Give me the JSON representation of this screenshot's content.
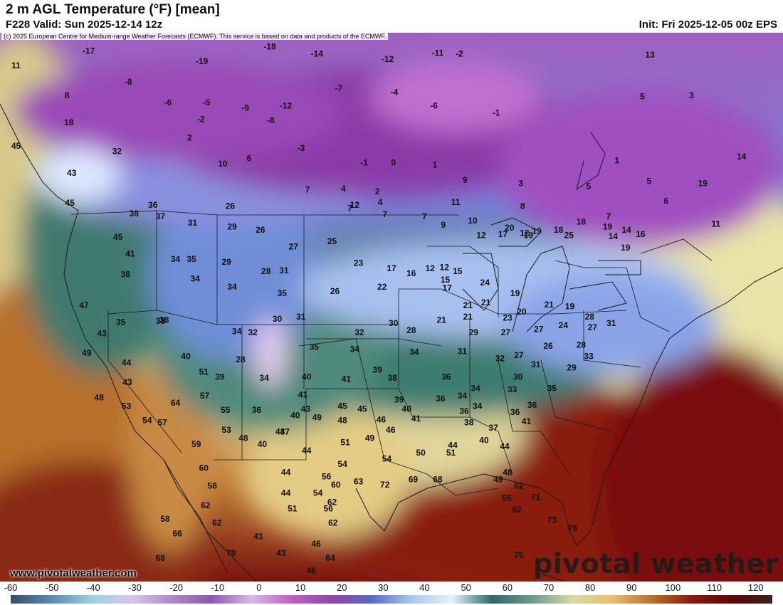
{
  "header": {
    "title": "2 m AGL Temperature (°F) [mean]",
    "valid": "F228 Valid: Sun 2025-12-14 12z",
    "init": "Init: Fri 2025-12-05 00z EPS",
    "copyright": "(c) 2025 European Centre for Medium-range Weather Forecasts (ECMWF). This service is based on data and products of the ECMWF."
  },
  "branding": {
    "site_url": "www.pivotalweather.com",
    "logo_text": "pivotal weather"
  },
  "colorbar": {
    "ticks": [
      "-60",
      "-50",
      "-40",
      "-30",
      "-20",
      "-10",
      "0",
      "10",
      "20",
      "30",
      "40",
      "50",
      "60",
      "70",
      "80",
      "90",
      "100",
      "110",
      "120"
    ],
    "range": [
      -60,
      124
    ],
    "colors": [
      "#3a4a6a",
      "#5a8ab0",
      "#9ad0e0",
      "#d8c8e8",
      "#b08ac8",
      "#8a5ab0",
      "#d8b8e8",
      "#c060c0",
      "#9048a8",
      "#5868c8",
      "#a8c8f0",
      "#e8f0ff",
      "#2e6a6a",
      "#6a9a8a",
      "#d8d8a8",
      "#e8c070",
      "#b8702a",
      "#8a1a10",
      "#5a0808",
      "#3a2020"
    ]
  },
  "temperature_labels": [
    {
      "v": "-17",
      "lon": -125.6,
      "lat": 53.2
    },
    {
      "v": "-19",
      "lon": -113.6,
      "lat": 52.2
    },
    {
      "v": "-18",
      "lon": -106.4,
      "lat": 53.6
    },
    {
      "v": "-14",
      "lon": -101.4,
      "lat": 52.9
    },
    {
      "v": "-12",
      "lon": -93.9,
      "lat": 52.4
    },
    {
      "v": "-11",
      "lon": -88.6,
      "lat": 53.0
    },
    {
      "v": "11",
      "lon": -133.3,
      "lat": 51.8
    },
    {
      "v": "-8",
      "lon": -121.4,
      "lat": 50.2
    },
    {
      "v": "8",
      "lon": -127.9,
      "lat": 48.9
    },
    {
      "v": "-6",
      "lon": -117.2,
      "lat": 48.2
    },
    {
      "v": "-5",
      "lon": -113.1,
      "lat": 48.2
    },
    {
      "v": "-9",
      "lon": -109.0,
      "lat": 47.7
    },
    {
      "v": "-12",
      "lon": -104.7,
      "lat": 47.9
    },
    {
      "v": "-7",
      "lon": -99.1,
      "lat": 49.6
    },
    {
      "v": "-4",
      "lon": -93.2,
      "lat": 49.2
    },
    {
      "v": "-6",
      "lon": -89.0,
      "lat": 47.9
    },
    {
      "v": "-2",
      "lon": -86.3,
      "lat": 52.9
    },
    {
      "v": "-1",
      "lon": -82.4,
      "lat": 47.2
    },
    {
      "v": "18",
      "lon": -127.7,
      "lat": 46.3
    },
    {
      "v": "-2",
      "lon": -113.7,
      "lat": 46.6
    },
    {
      "v": "-8",
      "lon": -106.3,
      "lat": 46.5
    },
    {
      "v": "2",
      "lon": -114.9,
      "lat": 44.8
    },
    {
      "v": "-3",
      "lon": -103.1,
      "lat": 43.8
    },
    {
      "v": "32",
      "lon": -122.6,
      "lat": 43.5
    },
    {
      "v": "10",
      "lon": -111.4,
      "lat": 42.3
    },
    {
      "v": "6",
      "lon": -108.6,
      "lat": 42.8
    },
    {
      "v": "-1",
      "lon": -96.4,
      "lat": 42.4
    },
    {
      "v": "0",
      "lon": -93.3,
      "lat": 42.4
    },
    {
      "v": "1",
      "lon": -88.9,
      "lat": 42.2
    },
    {
      "v": "13",
      "lon": -66.1,
      "lat": 52.8
    },
    {
      "v": "5",
      "lon": -66.9,
      "lat": 48.8
    },
    {
      "v": "3",
      "lon": -61.7,
      "lat": 48.9
    },
    {
      "v": "1",
      "lon": -69.6,
      "lat": 42.6
    },
    {
      "v": "14",
      "lon": -56.4,
      "lat": 43.0
    },
    {
      "v": "7",
      "lon": -102.4,
      "lat": 39.8
    },
    {
      "v": "4",
      "lon": -98.6,
      "lat": 39.9
    },
    {
      "v": "2",
      "lon": -95.0,
      "lat": 39.6
    },
    {
      "v": "4",
      "lon": -94.7,
      "lat": 38.6
    },
    {
      "v": "9",
      "lon": -85.7,
      "lat": 40.7
    },
    {
      "v": "3",
      "lon": -79.8,
      "lat": 40.4
    },
    {
      "v": "5",
      "lon": -72.6,
      "lat": 40.1
    },
    {
      "v": "5",
      "lon": -66.2,
      "lat": 40.6
    },
    {
      "v": "19",
      "lon": -60.5,
      "lat": 40.4
    },
    {
      "v": "6",
      "lon": -64.4,
      "lat": 38.7
    },
    {
      "v": "8",
      "lon": -79.6,
      "lat": 38.2
    },
    {
      "v": "11",
      "lon": -59.1,
      "lat": 36.5
    },
    {
      "v": "12",
      "lon": -79.4,
      "lat": 35.6
    },
    {
      "v": "7",
      "lon": -70.5,
      "lat": 37.2
    },
    {
      "v": "19",
      "lon": -70.6,
      "lat": 36.2
    },
    {
      "v": "11",
      "lon": -86.7,
      "lat": 38.6
    },
    {
      "v": "12",
      "lon": -97.4,
      "lat": 38.3
    },
    {
      "v": "7",
      "lon": -97.9,
      "lat": 38.0
    },
    {
      "v": "7",
      "lon": -94.2,
      "lat": 37.4
    },
    {
      "v": "7",
      "lon": -90.0,
      "lat": 37.2
    },
    {
      "v": "9",
      "lon": -88.0,
      "lat": 36.4
    },
    {
      "v": "10",
      "lon": -84.9,
      "lat": 36.8
    },
    {
      "v": "12",
      "lon": -84.0,
      "lat": 35.4
    },
    {
      "v": "20",
      "lon": -81.0,
      "lat": 36.1
    },
    {
      "v": "17",
      "lon": -81.7,
      "lat": 35.5
    },
    {
      "v": "19",
      "lon": -79.0,
      "lat": 35.4
    },
    {
      "v": "19",
      "lon": -78.1,
      "lat": 35.8
    },
    {
      "v": "18",
      "lon": -75.8,
      "lat": 35.9
    },
    {
      "v": "18",
      "lon": -73.4,
      "lat": 36.7
    },
    {
      "v": "25",
      "lon": -74.7,
      "lat": 35.4
    },
    {
      "v": "14",
      "lon": -70.0,
      "lat": 35.3
    },
    {
      "v": "16",
      "lon": -67.1,
      "lat": 35.5
    },
    {
      "v": "19",
      "lon": -68.7,
      "lat": 34.2
    },
    {
      "v": "14",
      "lon": -68.6,
      "lat": 35.9
    },
    {
      "v": "45",
      "lon": -133.3,
      "lat": 44.0
    },
    {
      "v": "43",
      "lon": -127.4,
      "lat": 41.4
    },
    {
      "v": "45",
      "lon": -127.6,
      "lat": 38.5
    },
    {
      "v": "36",
      "lon": -118.8,
      "lat": 38.3
    },
    {
      "v": "31",
      "lon": -114.6,
      "lat": 36.6
    },
    {
      "v": "26",
      "lon": -110.6,
      "lat": 38.2
    },
    {
      "v": "38",
      "lon": -120.8,
      "lat": 37.5
    },
    {
      "v": "37",
      "lon": -118.0,
      "lat": 37.2
    },
    {
      "v": "45",
      "lon": -122.5,
      "lat": 35.2
    },
    {
      "v": "29",
      "lon": -110.4,
      "lat": 36.2
    },
    {
      "v": "26",
      "lon": -107.4,
      "lat": 35.9
    },
    {
      "v": "27",
      "lon": -103.9,
      "lat": 34.3
    },
    {
      "v": "25",
      "lon": -99.8,
      "lat": 34.8
    },
    {
      "v": "41",
      "lon": -121.2,
      "lat": 33.6
    },
    {
      "v": "34",
      "lon": -116.4,
      "lat": 33.1
    },
    {
      "v": "35",
      "lon": -114.7,
      "lat": 33.1
    },
    {
      "v": "29",
      "lon": -111.0,
      "lat": 32.8
    },
    {
      "v": "28",
      "lon": -106.8,
      "lat": 31.9
    },
    {
      "v": "31",
      "lon": -104.9,
      "lat": 32.0
    },
    {
      "v": "23",
      "lon": -97.0,
      "lat": 32.7
    },
    {
      "v": "17",
      "lon": -93.5,
      "lat": 32.2
    },
    {
      "v": "16",
      "lon": -91.4,
      "lat": 31.7
    },
    {
      "v": "12",
      "lon": -89.4,
      "lat": 32.2
    },
    {
      "v": "12",
      "lon": -87.9,
      "lat": 32.3
    },
    {
      "v": "15",
      "lon": -86.5,
      "lat": 31.9
    },
    {
      "v": "15",
      "lon": -87.8,
      "lat": 31.1
    },
    {
      "v": "38",
      "lon": -121.7,
      "lat": 31.6
    },
    {
      "v": "34",
      "lon": -114.3,
      "lat": 31.2
    },
    {
      "v": "34",
      "lon": -110.4,
      "lat": 30.4
    },
    {
      "v": "35",
      "lon": -105.1,
      "lat": 29.8
    },
    {
      "v": "26",
      "lon": -99.5,
      "lat": 30.0
    },
    {
      "v": "22",
      "lon": -94.5,
      "lat": 30.4
    },
    {
      "v": "17",
      "lon": -87.6,
      "lat": 30.3
    },
    {
      "v": "24",
      "lon": -83.6,
      "lat": 30.8
    },
    {
      "v": "21",
      "lon": -83.5,
      "lat": 28.9
    },
    {
      "v": "21",
      "lon": -85.4,
      "lat": 28.6
    },
    {
      "v": "19",
      "lon": -80.4,
      "lat": 29.8
    },
    {
      "v": "47",
      "lon": -126.1,
      "lat": 28.6
    },
    {
      "v": "35",
      "lon": -122.2,
      "lat": 27.0
    },
    {
      "v": "38",
      "lon": -118.0,
      "lat": 27.1
    },
    {
      "v": "32",
      "lon": -108.2,
      "lat": 26.0
    },
    {
      "v": "30",
      "lon": -105.6,
      "lat": 27.3
    },
    {
      "v": "31",
      "lon": -103.1,
      "lat": 27.5
    },
    {
      "v": "32",
      "lon": -96.9,
      "lat": 26.0
    },
    {
      "v": "30",
      "lon": -93.3,
      "lat": 26.9
    },
    {
      "v": "28",
      "lon": -91.4,
      "lat": 26.2
    },
    {
      "v": "21",
      "lon": -88.2,
      "lat": 27.2
    },
    {
      "v": "21",
      "lon": -85.4,
      "lat": 27.5
    },
    {
      "v": "23",
      "lon": -81.2,
      "lat": 27.4
    },
    {
      "v": "20",
      "lon": -79.7,
      "lat": 28.0
    },
    {
      "v": "21",
      "lon": -76.8,
      "lat": 28.7
    },
    {
      "v": "19",
      "lon": -74.6,
      "lat": 28.5
    },
    {
      "v": "28",
      "lon": -72.5,
      "lat": 27.5
    },
    {
      "v": "31",
      "lon": -70.2,
      "lat": 26.9
    },
    {
      "v": "27",
      "lon": -72.2,
      "lat": 26.5
    },
    {
      "v": "24",
      "lon": -75.3,
      "lat": 26.7
    },
    {
      "v": "27",
      "lon": -77.9,
      "lat": 26.3
    },
    {
      "v": "27",
      "lon": -81.4,
      "lat": 26.0
    },
    {
      "v": "29",
      "lon": -84.8,
      "lat": 26.0
    },
    {
      "v": "26",
      "lon": -76.9,
      "lat": 24.7
    },
    {
      "v": "28",
      "lon": -73.4,
      "lat": 24.8
    },
    {
      "v": "33",
      "lon": -72.6,
      "lat": 23.7
    },
    {
      "v": "43",
      "lon": -124.2,
      "lat": 25.9
    },
    {
      "v": "38",
      "lon": -117.6,
      "lat": 27.2
    },
    {
      "v": "34",
      "lon": -109.9,
      "lat": 26.1
    },
    {
      "v": "35",
      "lon": -101.7,
      "lat": 24.6
    },
    {
      "v": "34",
      "lon": -97.4,
      "lat": 24.4
    },
    {
      "v": "34",
      "lon": -91.1,
      "lat": 24.1
    },
    {
      "v": "31",
      "lon": -86.0,
      "lat": 24.2
    },
    {
      "v": "32",
      "lon": -82.0,
      "lat": 23.5
    },
    {
      "v": "27",
      "lon": -80.0,
      "lat": 23.8
    },
    {
      "v": "31",
      "lon": -78.2,
      "lat": 22.9
    },
    {
      "v": "29",
      "lon": -74.4,
      "lat": 22.6
    },
    {
      "v": "49",
      "lon": -125.8,
      "lat": 24.0
    },
    {
      "v": "40",
      "lon": -115.3,
      "lat": 23.7
    },
    {
      "v": "44",
      "lon": -121.6,
      "lat": 23.1
    },
    {
      "v": "51",
      "lon": -113.4,
      "lat": 22.2
    },
    {
      "v": "28",
      "lon": -109.5,
      "lat": 23.4
    },
    {
      "v": "39",
      "lon": -111.7,
      "lat": 21.7
    },
    {
      "v": "34",
      "lon": -107.0,
      "lat": 21.6
    },
    {
      "v": "40",
      "lon": -102.5,
      "lat": 21.7
    },
    {
      "v": "41",
      "lon": -98.3,
      "lat": 21.5
    },
    {
      "v": "39",
      "lon": -95.0,
      "lat": 22.4
    },
    {
      "v": "38",
      "lon": -93.4,
      "lat": 21.6
    },
    {
      "v": "36",
      "lon": -87.7,
      "lat": 21.7
    },
    {
      "v": "34",
      "lon": -84.6,
      "lat": 20.6
    },
    {
      "v": "30",
      "lon": -80.1,
      "lat": 21.7
    },
    {
      "v": "33",
      "lon": -80.7,
      "lat": 20.5
    },
    {
      "v": "35",
      "lon": -76.5,
      "lat": 20.6
    },
    {
      "v": "43",
      "lon": -121.5,
      "lat": 21.2
    },
    {
      "v": "48",
      "lon": -124.5,
      "lat": 19.7
    },
    {
      "v": "53",
      "lon": -121.6,
      "lat": 18.9
    },
    {
      "v": "57",
      "lon": -113.3,
      "lat": 19.9
    },
    {
      "v": "64",
      "lon": -116.4,
      "lat": 19.2
    },
    {
      "v": "55",
      "lon": -111.1,
      "lat": 18.5
    },
    {
      "v": "36",
      "lon": -107.8,
      "lat": 18.5
    },
    {
      "v": "41",
      "lon": -102.9,
      "lat": 20.0
    },
    {
      "v": "43",
      "lon": -102.6,
      "lat": 18.6
    },
    {
      "v": "45",
      "lon": -98.7,
      "lat": 18.9
    },
    {
      "v": "45",
      "lon": -96.6,
      "lat": 18.6
    },
    {
      "v": "39",
      "lon": -92.7,
      "lat": 19.5
    },
    {
      "v": "36",
      "lon": -88.3,
      "lat": 19.6
    },
    {
      "v": "34",
      "lon": -86.0,
      "lat": 19.9
    },
    {
      "v": "34",
      "lon": -84.4,
      "lat": 18.9
    },
    {
      "v": "36",
      "lon": -85.8,
      "lat": 18.4
    },
    {
      "v": "36",
      "lon": -80.4,
      "lat": 18.3
    },
    {
      "v": "36",
      "lon": -78.6,
      "lat": 19.0
    },
    {
      "v": "40",
      "lon": -103.7,
      "lat": 18.0
    },
    {
      "v": "40",
      "lon": -91.9,
      "lat": 18.6
    },
    {
      "v": "54",
      "lon": -119.4,
      "lat": 17.5
    },
    {
      "v": "57",
      "lon": -117.8,
      "lat": 17.3
    },
    {
      "v": "49",
      "lon": -101.4,
      "lat": 17.8
    },
    {
      "v": "48",
      "lon": -98.7,
      "lat": 17.5
    },
    {
      "v": "46",
      "lon": -94.6,
      "lat": 17.6
    },
    {
      "v": "41",
      "lon": -90.9,
      "lat": 17.7
    },
    {
      "v": "38",
      "lon": -85.3,
      "lat": 17.3
    },
    {
      "v": "37",
      "lon": -82.7,
      "lat": 16.8
    },
    {
      "v": "41",
      "lon": -79.2,
      "lat": 17.4
    },
    {
      "v": "53",
      "lon": -111.0,
      "lat": 16.6
    },
    {
      "v": "43",
      "lon": -105.3,
      "lat": 16.4
    },
    {
      "v": "47",
      "lon": -104.8,
      "lat": 16.4
    },
    {
      "v": "46",
      "lon": -93.6,
      "lat": 16.6
    },
    {
      "v": "59",
      "lon": -114.2,
      "lat": 15.2
    },
    {
      "v": "48",
      "lon": -109.2,
      "lat": 15.8
    },
    {
      "v": "51",
      "lon": -98.4,
      "lat": 15.4
    },
    {
      "v": "49",
      "lon": -95.8,
      "lat": 15.8
    },
    {
      "v": "44",
      "lon": -87.0,
      "lat": 15.1
    },
    {
      "v": "40",
      "lon": -83.7,
      "lat": 15.6
    },
    {
      "v": "44",
      "lon": -81.5,
      "lat": 15.0
    },
    {
      "v": "40",
      "lon": -107.2,
      "lat": 15.2
    },
    {
      "v": "44",
      "lon": -102.5,
      "lat": 14.6
    },
    {
      "v": "50",
      "lon": -90.4,
      "lat": 14.4
    },
    {
      "v": "51",
      "lon": -87.2,
      "lat": 14.4
    },
    {
      "v": "54",
      "lon": -94.0,
      "lat": 13.8
    },
    {
      "v": "54",
      "lon": -98.7,
      "lat": 13.3
    },
    {
      "v": "60",
      "lon": -113.4,
      "lat": 12.9
    },
    {
      "v": "44",
      "lon": -104.7,
      "lat": 12.5
    },
    {
      "v": "56",
      "lon": -100.4,
      "lat": 12.1
    },
    {
      "v": "48",
      "lon": -81.2,
      "lat": 12.5
    },
    {
      "v": "58",
      "lon": -112.5,
      "lat": 11.2
    },
    {
      "v": "60",
      "lon": -99.4,
      "lat": 11.3
    },
    {
      "v": "63",
      "lon": -97.0,
      "lat": 11.6
    },
    {
      "v": "72",
      "lon": -94.2,
      "lat": 11.3
    },
    {
      "v": "69",
      "lon": -91.2,
      "lat": 11.8
    },
    {
      "v": "68",
      "lon": -88.6,
      "lat": 11.8
    },
    {
      "v": "49",
      "lon": -82.2,
      "lat": 11.8
    },
    {
      "v": "62",
      "lon": -80.0,
      "lat": 11.2
    },
    {
      "v": "44",
      "lon": -104.7,
      "lat": 10.5
    },
    {
      "v": "54",
      "lon": -101.3,
      "lat": 10.5
    },
    {
      "v": "55",
      "lon": -81.3,
      "lat": 10.0
    },
    {
      "v": "71",
      "lon": -78.2,
      "lat": 10.1
    },
    {
      "v": "62",
      "lon": -113.2,
      "lat": 9.3
    },
    {
      "v": "51",
      "lon": -104.0,
      "lat": 9.0
    },
    {
      "v": "56",
      "lon": -100.2,
      "lat": 9.0
    },
    {
      "v": "62",
      "lon": -99.8,
      "lat": 9.6
    },
    {
      "v": "62",
      "lon": -80.2,
      "lat": 8.9
    },
    {
      "v": "58",
      "lon": -117.5,
      "lat": 8.0
    },
    {
      "v": "62",
      "lon": -112.0,
      "lat": 7.6
    },
    {
      "v": "62",
      "lon": -99.7,
      "lat": 7.6
    },
    {
      "v": "73",
      "lon": -76.5,
      "lat": 7.9
    },
    {
      "v": "76",
      "lon": -74.3,
      "lat": 7.1
    },
    {
      "v": "66",
      "lon": -116.2,
      "lat": 6.6
    },
    {
      "v": "41",
      "lon": -107.6,
      "lat": 6.3
    },
    {
      "v": "46",
      "lon": -101.5,
      "lat": 5.6
    },
    {
      "v": "70",
      "lon": -110.5,
      "lat": 4.7
    },
    {
      "v": "43",
      "lon": -105.2,
      "lat": 4.7
    },
    {
      "v": "64",
      "lon": -100.0,
      "lat": 4.2
    },
    {
      "v": "75",
      "lon": -80.0,
      "lat": 4.5
    },
    {
      "v": "68",
      "lon": -118.0,
      "lat": 4.2
    },
    {
      "v": "46",
      "lon": -102.0,
      "lat": 3.0
    }
  ]
}
